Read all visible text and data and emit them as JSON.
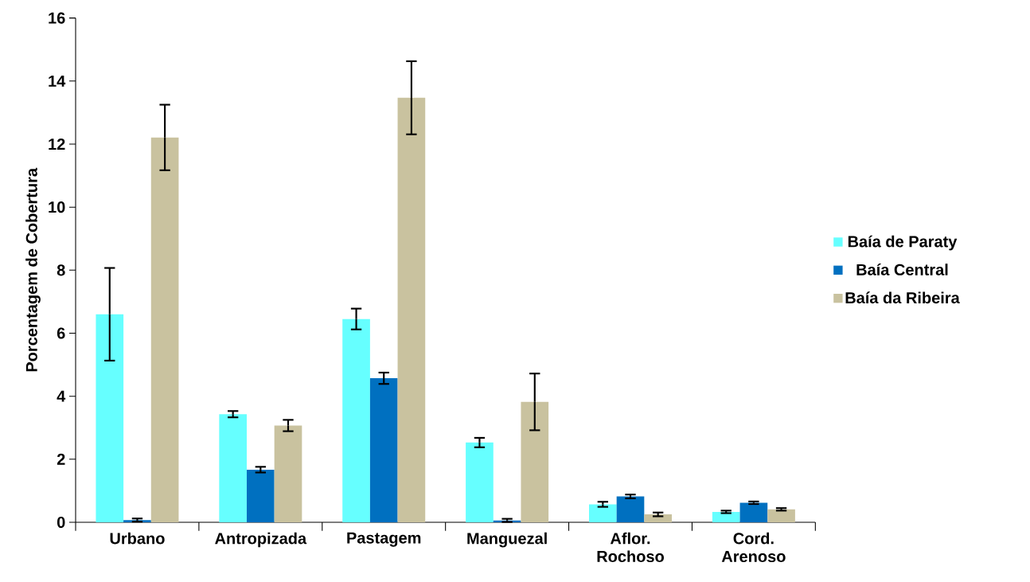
{
  "chart_data": {
    "type": "bar",
    "ylabel": "Porcentagem de Cobertura",
    "categories": [
      "Urbano",
      "Antropizada",
      "Pastagem",
      "Manguezal",
      "Aflor. Rochoso",
      "Cord. Arenoso"
    ],
    "series": [
      {
        "name": "Baía de Paraty",
        "color": "#66ffff",
        "values": [
          6.6,
          3.43,
          6.45,
          2.53,
          0.57,
          0.33
        ],
        "errors": [
          1.47,
          0.1,
          0.33,
          0.15,
          0.08,
          0.04
        ]
      },
      {
        "name": "Baía Central",
        "color": "#0070c0",
        "values": [
          0.07,
          1.67,
          4.57,
          0.06,
          0.82,
          0.62
        ],
        "errors": [
          0.05,
          0.09,
          0.18,
          0.05,
          0.06,
          0.04
        ]
      },
      {
        "name": "Baía da Ribeira",
        "color": "#c9c29f",
        "values": [
          12.21,
          3.07,
          13.47,
          3.82,
          0.25,
          0.41
        ],
        "errors": [
          1.04,
          0.18,
          1.16,
          0.9,
          0.06,
          0.04
        ]
      }
    ],
    "ylim": [
      0,
      16
    ],
    "yticks": [
      0,
      2,
      4,
      6,
      8,
      10,
      12,
      14,
      16
    ],
    "legend": "right",
    "grid": false
  }
}
